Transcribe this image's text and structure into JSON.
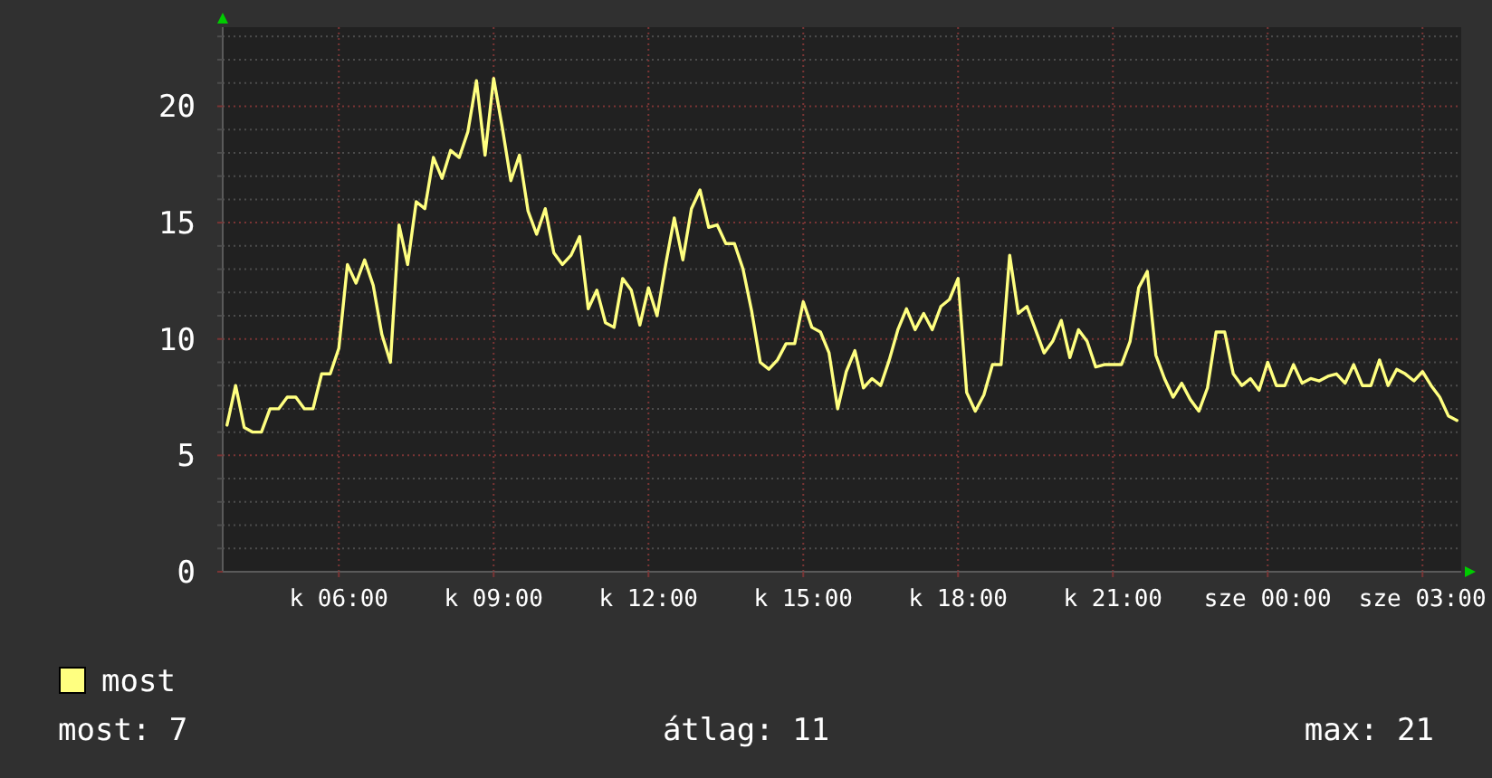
{
  "chart_data": {
    "type": "line",
    "categories": [
      null,
      null,
      null,
      null,
      null,
      null,
      null,
      null,
      null,
      null,
      null,
      null,
      null,
      "k 06:00",
      null,
      null,
      null,
      null,
      null,
      null,
      null,
      null,
      null,
      null,
      null,
      null,
      null,
      null,
      null,
      null,
      null,
      "k 09:00",
      null,
      null,
      null,
      null,
      null,
      null,
      null,
      null,
      null,
      null,
      null,
      null,
      null,
      null,
      null,
      null,
      null,
      "k 12:00",
      null,
      null,
      null,
      null,
      null,
      null,
      null,
      null,
      null,
      null,
      null,
      null,
      null,
      null,
      null,
      null,
      null,
      "k 15:00",
      null,
      null,
      null,
      null,
      null,
      null,
      null,
      null,
      null,
      null,
      null,
      null,
      null,
      null,
      null,
      null,
      null,
      "k 18:00",
      null,
      null,
      null,
      null,
      null,
      null,
      null,
      null,
      null,
      null,
      null,
      null,
      null,
      null,
      null,
      null,
      null,
      "k 21:00",
      null,
      null,
      null,
      null,
      null,
      null,
      null,
      null,
      null,
      null,
      null,
      null,
      null,
      null,
      null,
      null,
      null,
      "sze 00:00",
      null,
      null,
      null,
      null,
      null,
      null,
      null,
      null,
      null,
      null,
      null,
      null,
      null,
      null,
      null,
      null,
      null,
      "sze 03:00",
      null,
      null,
      null,
      null
    ],
    "series": [
      {
        "name": "most",
        "color": "#ffff80",
        "values": [
          6.3,
          8,
          6.2,
          6,
          6,
          7,
          7,
          7.5,
          7.5,
          7,
          7,
          8.5,
          8.5,
          9.6,
          13.2,
          12.4,
          13.4,
          12.3,
          10.2,
          9,
          14.9,
          13.2,
          15.9,
          15.6,
          17.8,
          16.9,
          18.1,
          17.8,
          18.9,
          21.1,
          17.9,
          21.2,
          19.1,
          16.8,
          17.9,
          15.5,
          14.5,
          15.6,
          13.7,
          13.2,
          13.6,
          14.4,
          11.3,
          12.1,
          10.7,
          10.5,
          12.6,
          12.1,
          10.6,
          12.2,
          11,
          13.2,
          15.2,
          13.4,
          15.6,
          16.4,
          14.8,
          14.9,
          14.1,
          14.1,
          13,
          11.2,
          9,
          8.7,
          9.1,
          9.8,
          9.8,
          11.6,
          10.5,
          10.3,
          9.4,
          7,
          8.6,
          9.5,
          7.9,
          8.3,
          8,
          9.1,
          10.4,
          11.3,
          10.4,
          11.1,
          10.4,
          11.4,
          11.7,
          12.6,
          7.7,
          6.9,
          7.6,
          8.9,
          8.9,
          13.6,
          11.1,
          11.4,
          10.4,
          9.4,
          9.9,
          10.8,
          9.2,
          10.4,
          9.9,
          8.8,
          8.9,
          8.9,
          8.9,
          9.9,
          12.2,
          12.9,
          9.3,
          8.3,
          7.5,
          8.1,
          7.4,
          6.9,
          7.9,
          10.3,
          10.3,
          8.5,
          8,
          8.3,
          7.8,
          9,
          8,
          8,
          8.9,
          8.1,
          8.3,
          8.2,
          8.4,
          8.5,
          8.1,
          8.9,
          8,
          8,
          9.1,
          8,
          8.7,
          8.5,
          8.2,
          8.6,
          8,
          7.5,
          6.7,
          6.5
        ]
      }
    ],
    "ylim": [
      0,
      23.4
    ],
    "yticks": [
      0,
      {
        "value": 1,
        "label": null
      },
      {
        "value": 2,
        "label": null
      },
      {
        "value": 3,
        "label": null
      },
      {
        "value": 4,
        "label": null
      },
      5,
      {
        "value": 6,
        "label": null
      },
      {
        "value": 7,
        "label": null
      },
      {
        "value": 8,
        "label": null
      },
      {
        "value": 9,
        "label": null
      },
      10,
      {
        "value": 11,
        "label": null
      },
      {
        "value": 12,
        "label": null
      },
      {
        "value": 13,
        "label": null
      },
      {
        "value": 14,
        "label": null
      },
      15,
      {
        "value": 16,
        "label": null
      },
      {
        "value": 17,
        "label": null
      },
      {
        "value": 18,
        "label": null
      },
      {
        "value": 19,
        "label": null
      },
      20,
      {
        "value": 21,
        "label": null
      },
      {
        "value": 22,
        "label": null
      },
      {
        "value": 23,
        "label": null
      }
    ],
    "grid": true,
    "legend": "bottom left",
    "annotations": [
      "most: 7",
      "átlag: 11",
      "max: 21"
    ]
  }
}
